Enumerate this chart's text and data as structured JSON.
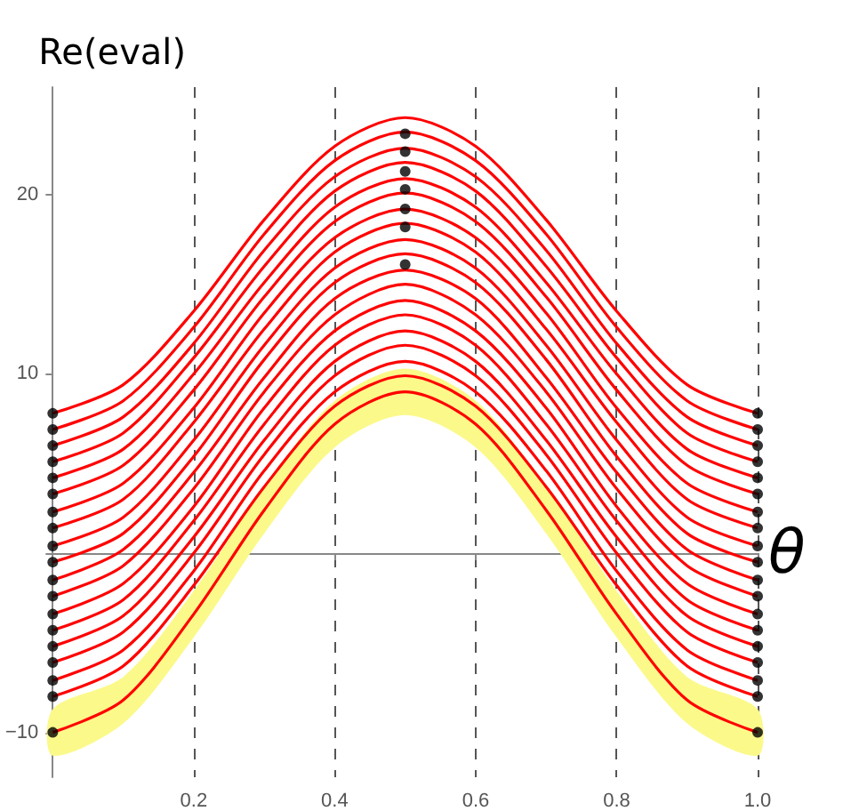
{
  "chart_data": {
    "type": "line",
    "xlabel": "θ",
    "ylabel": "Re(eval)",
    "x": [
      0,
      0.1,
      0.2,
      0.3,
      0.4,
      0.5,
      0.6,
      0.7,
      0.8,
      0.9,
      1.0
    ],
    "xlim": [
      0,
      1.0
    ],
    "ylim": [
      -12.5,
      26
    ],
    "xticks": [
      {
        "value": 0,
        "label": null
      },
      0.2,
      0.4,
      0.6,
      {
        "value": 0.8,
        "label": "0.8"
      },
      {
        "value": 1.0,
        "label": "1.0"
      }
    ],
    "yticks": [
      -10,
      {
        "value": 0,
        "label": null
      },
      10,
      20
    ],
    "grid": "x",
    "line_style": "solid",
    "series": [
      {
        "color": "#ff0000",
        "values": [
          -10,
          -8.2,
          -3.4,
          2.4,
          7.2,
          9,
          7.2,
          2.4,
          -3.4,
          -8.2,
          -10
        ],
        "lower": [
          -11.3,
          -9.5,
          -4.7,
          1.1,
          5.9,
          7.7,
          5.9,
          1.1,
          -4.7,
          -9.5,
          -11.3
        ],
        "upper": [
          -8.7,
          -6.9,
          -2.1,
          3.7,
          8.5,
          10.3,
          8.5,
          3.7,
          -2.1,
          -6.9,
          -8.7
        ]
      },
      {
        "color": "#ff0000",
        "values": [
          -8,
          -6.3,
          -1.8,
          3.7,
          8.2,
          9.9,
          8.2,
          3.7,
          -1.8,
          -6.3,
          -8
        ]
      },
      {
        "color": "#ff0000",
        "values": [
          -7.1,
          -5.4,
          -1.0,
          4.6,
          9.0,
          10.7,
          9.0,
          4.6,
          -1.0,
          -5.4,
          -7.1
        ]
      },
      {
        "color": "#ff0000",
        "values": [
          -6.1,
          -4.4,
          0.0,
          5.5,
          9.9,
          11.6,
          9.9,
          5.5,
          0.0,
          -4.4,
          -6.1
        ]
      },
      {
        "color": "#ff0000",
        "values": [
          -5.2,
          -3.5,
          0.9,
          6.3,
          10.7,
          12.4,
          10.7,
          6.3,
          0.9,
          -3.5,
          -5.2
        ]
      },
      {
        "color": "#ff0000",
        "values": [
          -4.3,
          -2.6,
          1.8,
          7.2,
          11.6,
          13.3,
          11.6,
          7.2,
          1.8,
          -2.6,
          -4.3
        ]
      },
      {
        "color": "#ff0000",
        "values": [
          -3.4,
          -1.7,
          2.6,
          8.1,
          12.4,
          14.1,
          12.4,
          8.1,
          2.6,
          -1.7,
          -3.4
        ]
      },
      {
        "color": "#ff0000",
        "values": [
          -2.4,
          -0.7,
          3.6,
          9.0,
          13.3,
          15.0,
          13.3,
          9.0,
          3.6,
          -0.7,
          -2.4
        ]
      },
      {
        "color": "#ff0000",
        "values": [
          -1.5,
          0.2,
          4.5,
          9.8,
          14.2,
          15.8,
          14.2,
          9.8,
          4.5,
          0.2,
          -1.5
        ]
      },
      {
        "color": "#ff0000",
        "values": [
          -0.5,
          1.1,
          5.4,
          10.8,
          15.1,
          16.7,
          15.1,
          10.8,
          5.4,
          1.1,
          -0.5
        ]
      },
      {
        "color": "#ff0000",
        "values": [
          0.4,
          2.0,
          6.3,
          11.6,
          15.9,
          17.5,
          15.9,
          11.6,
          6.3,
          2.0,
          0.4
        ]
      },
      {
        "color": "#ff0000",
        "values": [
          1.4,
          3.0,
          7.3,
          12.5,
          16.8,
          18.4,
          16.8,
          12.5,
          7.3,
          3.0,
          1.4
        ]
      },
      {
        "color": "#ff0000",
        "values": [
          2.3,
          3.9,
          8.1,
          13.4,
          17.6,
          19.2,
          17.6,
          13.4,
          8.1,
          3.9,
          2.3
        ]
      },
      {
        "color": "#ff0000",
        "values": [
          3.3,
          4.9,
          9.1,
          14.3,
          18.5,
          20.1,
          18.5,
          14.3,
          9.1,
          4.9,
          3.3
        ]
      },
      {
        "color": "#ff0000",
        "values": [
          4.2,
          5.8,
          10.0,
          15.1,
          19.3,
          20.9,
          19.3,
          15.1,
          10.0,
          5.8,
          4.2
        ]
      },
      {
        "color": "#ff0000",
        "values": [
          5.1,
          6.7,
          10.9,
          16.0,
          20.2,
          21.8,
          20.2,
          16.0,
          10.9,
          6.7,
          5.1
        ]
      },
      {
        "color": "#ff0000",
        "values": [
          6.0,
          7.6,
          11.7,
          16.9,
          21.0,
          22.6,
          21.0,
          16.9,
          11.7,
          7.6,
          6.0
        ]
      },
      {
        "color": "#ff0000",
        "values": [
          6.9,
          8.5,
          12.6,
          17.8,
          21.9,
          23.5,
          21.9,
          17.8,
          12.6,
          8.5,
          6.9
        ]
      },
      {
        "color": "#ff0000",
        "values": [
          7.8,
          9.4,
          13.5,
          18.6,
          22.7,
          24.3,
          22.7,
          18.6,
          13.5,
          9.4,
          7.8
        ]
      },
      {
        "type": "scatter",
        "color": "#000000",
        "x": [
          0,
          0,
          0,
          0,
          0,
          0,
          0,
          0,
          0,
          0,
          0,
          0,
          0,
          0,
          0,
          0,
          0,
          0,
          0,
          0.5,
          0.5,
          0.5,
          0.5,
          0.5,
          0.5,
          0.5,
          1.0,
          1.0,
          1.0,
          1.0,
          1.0,
          1.0,
          1.0,
          1.0,
          1.0,
          1.0,
          1.0,
          1.0,
          1.0,
          1.0,
          1.0,
          1.0,
          1.0,
          1.0,
          1.0
        ],
        "values": [
          -10,
          -8,
          -7.1,
          -6.1,
          -5.2,
          -4.3,
          -3.4,
          -2.4,
          -1.5,
          -0.5,
          0.4,
          1.4,
          2.3,
          3.3,
          4.2,
          5.1,
          6.0,
          6.9,
          7.8,
          16.1,
          18.2,
          19.2,
          20.3,
          21.3,
          22.4,
          23.4,
          -10,
          -8,
          -7.1,
          -6.1,
          -5.2,
          -4.3,
          -3.4,
          -2.4,
          -1.5,
          -0.5,
          0.4,
          1.4,
          2.3,
          3.3,
          4.2,
          5.1,
          6.0,
          6.9,
          7.8
        ]
      }
    ]
  }
}
